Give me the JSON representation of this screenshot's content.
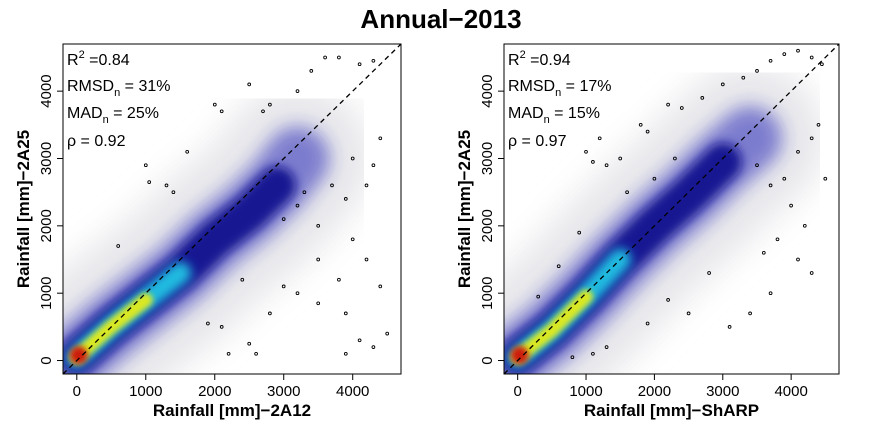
{
  "title": "Annual−2013",
  "colors": {
    "density_low": "#e6e6ea",
    "density_blue_dark": "#0a0a8c",
    "density_blue": "#2626b8",
    "density_cyan": "#22d8ee",
    "density_yellow": "#f0ee10",
    "density_red": "#cc1a0c",
    "outlier": "#000000",
    "reference_line": "#000000"
  },
  "chart_data": [
    {
      "type": "scatter",
      "subtype": "density-smoothed scatter",
      "xlabel": "Rainfall [mm]−2A12",
      "ylabel": "Rainfall [mm]−2A25",
      "xlim": [
        -200,
        4700
      ],
      "ylim": [
        -200,
        4700
      ],
      "xticks": [
        0,
        1000,
        2000,
        3000,
        4000
      ],
      "yticks": [
        0,
        1000,
        2000,
        3000,
        4000
      ],
      "reference_line": "1:1 dashed",
      "stats": {
        "r2_base": "R",
        "r2_sup": "2",
        "r2_value": " =0.84",
        "rmsd_base": "RMSD",
        "rmsd_sub": "n",
        "rmsd_value": " = 31%",
        "mad_base": "MAD",
        "mad_sub": "n",
        "mad_value": " = 25%",
        "rho_text": "ρ = 0.92"
      },
      "density_ridge": [
        [
          0,
          50
        ],
        [
          500,
          500
        ],
        [
          1000,
          900
        ],
        [
          1500,
          1300
        ],
        [
          2000,
          1800
        ],
        [
          2500,
          2200
        ],
        [
          2900,
          2600
        ],
        [
          3200,
          3000
        ]
      ],
      "outliers": [
        [
          600,
          1700
        ],
        [
          1000,
          2900
        ],
        [
          1050,
          2650
        ],
        [
          1300,
          2600
        ],
        [
          1400,
          2500
        ],
        [
          1600,
          3100
        ],
        [
          2000,
          3800
        ],
        [
          2100,
          3700
        ],
        [
          2500,
          4100
        ],
        [
          2700,
          3700
        ],
        [
          2800,
          3800
        ],
        [
          3200,
          4000
        ],
        [
          3400,
          4300
        ],
        [
          3600,
          4500
        ],
        [
          3800,
          4500
        ],
        [
          4100,
          4400
        ],
        [
          4300,
          4450
        ],
        [
          3000,
          2100
        ],
        [
          3200,
          2300
        ],
        [
          3300,
          2500
        ],
        [
          3500,
          2000
        ],
        [
          3700,
          2600
        ],
        [
          3900,
          2400
        ],
        [
          4000,
          1800
        ],
        [
          4200,
          2600
        ],
        [
          4300,
          2900
        ],
        [
          3500,
          1500
        ],
        [
          3800,
          1200
        ],
        [
          3900,
          700
        ],
        [
          4200,
          1500
        ],
        [
          4400,
          1100
        ],
        [
          4500,
          400
        ],
        [
          4100,
          300
        ],
        [
          3900,
          100
        ],
        [
          4300,
          200
        ],
        [
          2200,
          100
        ],
        [
          2500,
          250
        ],
        [
          2600,
          100
        ],
        [
          1900,
          550
        ],
        [
          2100,
          500
        ],
        [
          2800,
          700
        ],
        [
          3000,
          1100
        ],
        [
          3200,
          1000
        ],
        [
          3500,
          850
        ],
        [
          2400,
          1200
        ],
        [
          4000,
          3000
        ],
        [
          4400,
          3300
        ]
      ]
    },
    {
      "type": "scatter",
      "subtype": "density-smoothed scatter",
      "xlabel": "Rainfall [mm]−ShARP",
      "ylabel": "Rainfall [mm]−2A25",
      "xlim": [
        -200,
        4700
      ],
      "ylim": [
        -200,
        4700
      ],
      "xticks": [
        0,
        1000,
        2000,
        3000,
        4000
      ],
      "yticks": [
        0,
        1000,
        2000,
        3000,
        4000
      ],
      "reference_line": "1:1 dashed",
      "stats": {
        "r2_base": "R",
        "r2_sup": "2",
        "r2_value": " =0.94",
        "rmsd_base": "RMSD",
        "rmsd_sub": "n",
        "rmsd_value": " = 17%",
        "mad_base": "MAD",
        "mad_sub": "n",
        "mad_value": " = 15%",
        "rho_text": "ρ = 0.97"
      },
      "density_ridge": [
        [
          0,
          50
        ],
        [
          500,
          450
        ],
        [
          1000,
          950
        ],
        [
          1500,
          1500
        ],
        [
          2000,
          2000
        ],
        [
          2500,
          2450
        ],
        [
          3000,
          2950
        ],
        [
          3400,
          3300
        ]
      ],
      "outliers": [
        [
          300,
          950
        ],
        [
          600,
          1400
        ],
        [
          900,
          1900
        ],
        [
          1100,
          2950
        ],
        [
          1300,
          2900
        ],
        [
          1500,
          3000
        ],
        [
          1800,
          3500
        ],
        [
          1900,
          3400
        ],
        [
          2200,
          3800
        ],
        [
          2400,
          3750
        ],
        [
          2700,
          3900
        ],
        [
          3000,
          4100
        ],
        [
          3300,
          4200
        ],
        [
          3500,
          4300
        ],
        [
          3700,
          4450
        ],
        [
          3900,
          4550
        ],
        [
          4100,
          4600
        ],
        [
          4300,
          4500
        ],
        [
          4450,
          4400
        ],
        [
          1000,
          3100
        ],
        [
          1200,
          3300
        ],
        [
          1600,
          2500
        ],
        [
          2000,
          2700
        ],
        [
          2300,
          3000
        ],
        [
          3500,
          2900
        ],
        [
          3700,
          2600
        ],
        [
          3900,
          2700
        ],
        [
          4100,
          3100
        ],
        [
          4300,
          3300
        ],
        [
          4400,
          3500
        ],
        [
          4000,
          2300
        ],
        [
          4200,
          2000
        ],
        [
          3800,
          1800
        ],
        [
          4100,
          1500
        ],
        [
          4300,
          1300
        ],
        [
          3700,
          1000
        ],
        [
          3400,
          700
        ],
        [
          3100,
          500
        ],
        [
          2500,
          700
        ],
        [
          2200,
          900
        ],
        [
          1900,
          550
        ],
        [
          1300,
          200
        ],
        [
          1100,
          100
        ],
        [
          800,
          50
        ],
        [
          3600,
          1600
        ],
        [
          2800,
          1300
        ],
        [
          4500,
          2700
        ]
      ]
    }
  ]
}
